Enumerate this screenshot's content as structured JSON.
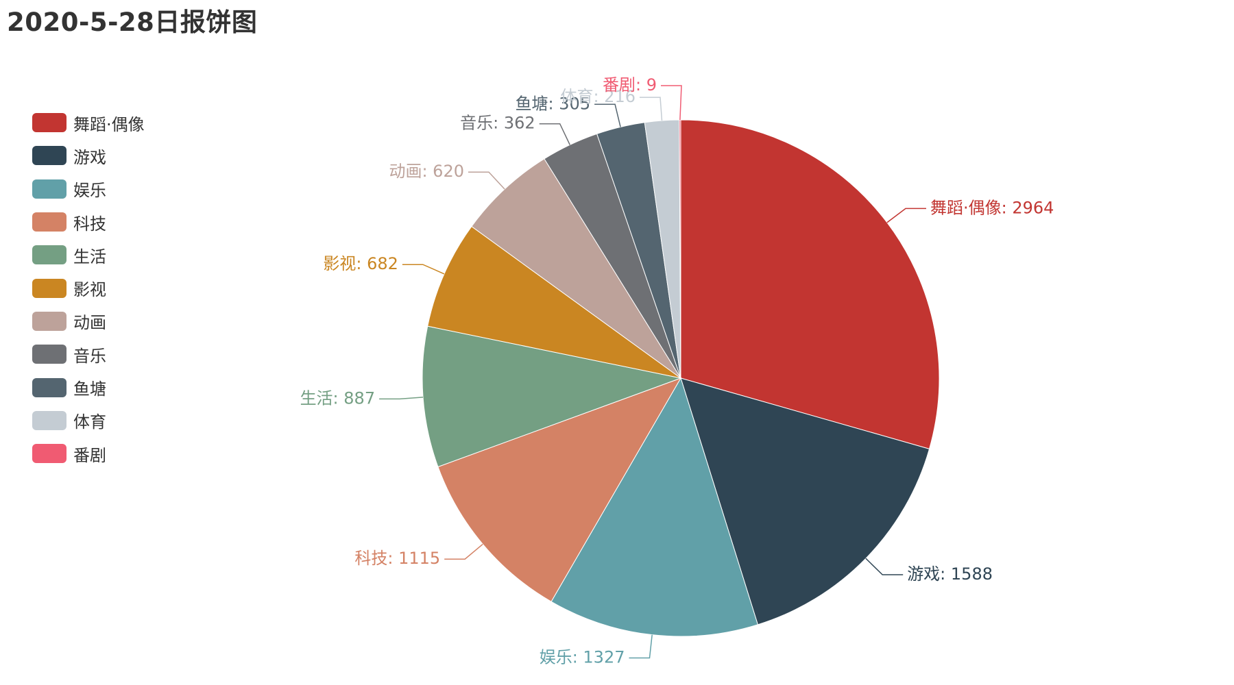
{
  "title": "2020-5-28日报饼图",
  "chart_data": {
    "type": "pie",
    "title": "2020-5-28日报饼图",
    "legend_position": "left",
    "start_angle_deg": 90,
    "direction": "clockwise",
    "slices": [
      {
        "name": "舞蹈·偶像",
        "value": 2964,
        "color": "#c23531"
      },
      {
        "name": "游戏",
        "value": 1588,
        "color": "#2f4554"
      },
      {
        "name": "娱乐",
        "value": 1327,
        "color": "#61a0a8"
      },
      {
        "name": "科技",
        "value": 1115,
        "color": "#d48265"
      },
      {
        "name": "生活",
        "value": 887,
        "color": "#749f83"
      },
      {
        "name": "影视",
        "value": 682,
        "color": "#ca8622"
      },
      {
        "name": "动画",
        "value": 620,
        "color": "#bda29a"
      },
      {
        "name": "音乐",
        "value": 362,
        "color": "#6e7074"
      },
      {
        "name": "鱼塘",
        "value": 305,
        "color": "#546570"
      },
      {
        "name": "体育",
        "value": 216,
        "color": "#c4ccd3"
      },
      {
        "name": "番剧",
        "value": 9,
        "color": "#f05b72"
      }
    ]
  }
}
